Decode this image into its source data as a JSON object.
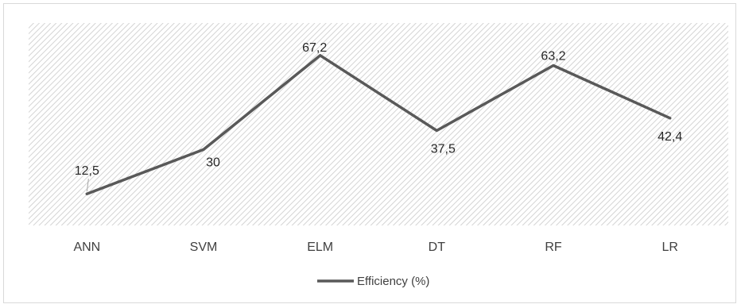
{
  "chart_data": {
    "type": "line",
    "categories": [
      "ANN",
      "SVM",
      "ELM",
      "DT",
      "RF",
      "LR"
    ],
    "series": [
      {
        "name": "Efficiency (%)",
        "values": [
          12.5,
          30,
          67.2,
          37.5,
          63.2,
          42.4
        ],
        "value_labels": [
          "12,5",
          "30",
          "67,2",
          "37,5",
          "63,2",
          "42,4"
        ],
        "color": "#595959"
      }
    ],
    "title": "",
    "xlabel": "",
    "ylabel": "",
    "ylim": [
      0,
      80
    ],
    "grid": false,
    "plot_area_fill": "diagonal-hatch",
    "legend_position": "bottom"
  }
}
